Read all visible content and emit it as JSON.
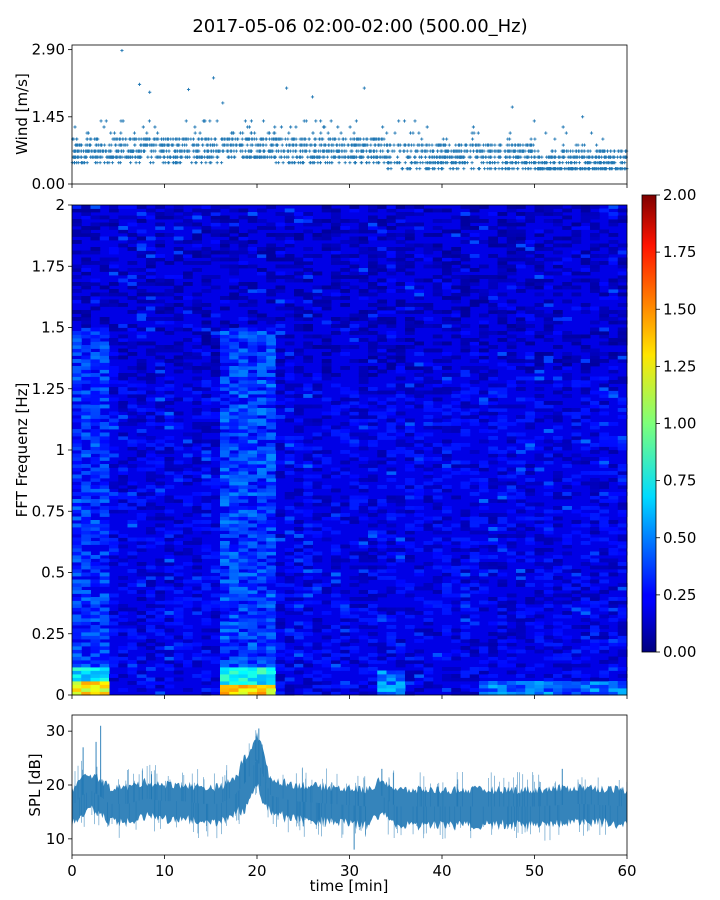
{
  "title": "2017-05-06 02:00-02:00 (500.00_Hz)",
  "chart_data": [
    {
      "type": "scatter",
      "ylabel": "Wind [m/s]",
      "xlim": [
        0,
        60
      ],
      "ylim": [
        0,
        3.0
      ],
      "yticks": [
        0.0,
        1.45,
        2.9
      ],
      "ytick_labels": [
        "0.00",
        "1.45",
        "2.90"
      ],
      "color": "#1f77b4",
      "marker": "+",
      "levels": [
        0.33,
        0.46,
        0.58,
        0.71,
        0.84,
        0.97,
        1.1,
        1.23,
        1.36
      ],
      "notable_points": [
        {
          "x": 5.4,
          "y": 2.88
        },
        {
          "x": 7.3,
          "y": 2.15
        },
        {
          "x": 8.4,
          "y": 1.98
        },
        {
          "x": 12.6,
          "y": 2.04
        },
        {
          "x": 15.3,
          "y": 2.29
        },
        {
          "x": 16.3,
          "y": 1.75
        },
        {
          "x": 23.2,
          "y": 2.07
        },
        {
          "x": 26.0,
          "y": 1.88
        },
        {
          "x": 31.6,
          "y": 2.07
        },
        {
          "x": 47.6,
          "y": 1.66
        },
        {
          "x": 55.2,
          "y": 1.45
        }
      ]
    },
    {
      "type": "heatmap",
      "ylabel": "FFT Frequenz [Hz]",
      "xlim": [
        0,
        60
      ],
      "ylim": [
        0,
        2
      ],
      "yticks": [
        0,
        0.25,
        0.5,
        0.75,
        1,
        1.25,
        1.5,
        1.75,
        2
      ],
      "ytick_labels": [
        "0",
        "0.25",
        "0.5",
        "0.75",
        "1",
        "1.25",
        "1.5",
        "1.75",
        "2"
      ],
      "colormap": "jet",
      "colorbar": {
        "range": [
          0,
          2
        ],
        "ticks": [
          0.0,
          0.25,
          0.5,
          0.75,
          1.0,
          1.25,
          1.5,
          1.75,
          2.0
        ],
        "tick_labels": [
          "0.00",
          "0.25",
          "0.50",
          "0.75",
          "1.00",
          "1.25",
          "1.50",
          "1.75",
          "2.00"
        ]
      },
      "background_level": 0.2,
      "hot_regions": [
        {
          "x": [
            0,
            4
          ],
          "f": [
            0,
            0.06
          ],
          "level": 1.25
        },
        {
          "x": [
            0,
            4
          ],
          "f": [
            0.06,
            0.12
          ],
          "level": 0.7
        },
        {
          "x": [
            16,
            22
          ],
          "f": [
            0,
            0.04
          ],
          "level": 1.3
        },
        {
          "x": [
            16,
            22
          ],
          "f": [
            0.04,
            0.12
          ],
          "level": 0.75
        },
        {
          "x": [
            16,
            22
          ],
          "f": [
            0.12,
            1.5
          ],
          "level": 0.35
        },
        {
          "x": [
            0,
            4
          ],
          "f": [
            0.12,
            1.5
          ],
          "level": 0.32
        },
        {
          "x": [
            33,
            36
          ],
          "f": [
            0,
            0.1
          ],
          "level": 0.5
        },
        {
          "x": [
            44,
            60
          ],
          "f": [
            0,
            0.05
          ],
          "level": 0.45
        }
      ]
    },
    {
      "type": "line",
      "xlabel": "time [min]",
      "ylabel": "SPL [dB]",
      "xlim": [
        0,
        60
      ],
      "ylim": [
        7,
        33
      ],
      "xticks": [
        0,
        10,
        20,
        30,
        40,
        50,
        60
      ],
      "xtick_labels": [
        "0",
        "10",
        "20",
        "30",
        "40",
        "50",
        "60"
      ],
      "yticks": [
        10,
        20,
        30
      ],
      "ytick_labels": [
        "10",
        "20",
        "30"
      ],
      "color": "#1f77b4",
      "envelope_points": [
        {
          "x": 0,
          "y": 16
        },
        {
          "x": 1,
          "y": 18
        },
        {
          "x": 2,
          "y": 19
        },
        {
          "x": 3,
          "y": 18
        },
        {
          "x": 4,
          "y": 16.5
        },
        {
          "x": 6,
          "y": 16.5
        },
        {
          "x": 8,
          "y": 17.5
        },
        {
          "x": 10,
          "y": 17
        },
        {
          "x": 12,
          "y": 17
        },
        {
          "x": 14,
          "y": 16.5
        },
        {
          "x": 16,
          "y": 16.5
        },
        {
          "x": 17.5,
          "y": 18
        },
        {
          "x": 19,
          "y": 21
        },
        {
          "x": 20,
          "y": 25
        },
        {
          "x": 20.6,
          "y": 22
        },
        {
          "x": 21.5,
          "y": 18
        },
        {
          "x": 24,
          "y": 17
        },
        {
          "x": 28,
          "y": 16.5
        },
        {
          "x": 32,
          "y": 16
        },
        {
          "x": 33.5,
          "y": 18
        },
        {
          "x": 35,
          "y": 16
        },
        {
          "x": 40,
          "y": 16
        },
        {
          "x": 45,
          "y": 16
        },
        {
          "x": 50,
          "y": 16
        },
        {
          "x": 55,
          "y": 16.5
        },
        {
          "x": 60,
          "y": 16
        }
      ],
      "spikes": [
        {
          "x": 1.2,
          "y": 27
        },
        {
          "x": 2.6,
          "y": 28
        },
        {
          "x": 3.1,
          "y": 31
        },
        {
          "x": 8.6,
          "y": 22
        },
        {
          "x": 20.2,
          "y": 30.5
        },
        {
          "x": 33.5,
          "y": 23
        },
        {
          "x": 53.0,
          "y": 23
        },
        {
          "x": 30.5,
          "y": 8
        }
      ]
    }
  ]
}
